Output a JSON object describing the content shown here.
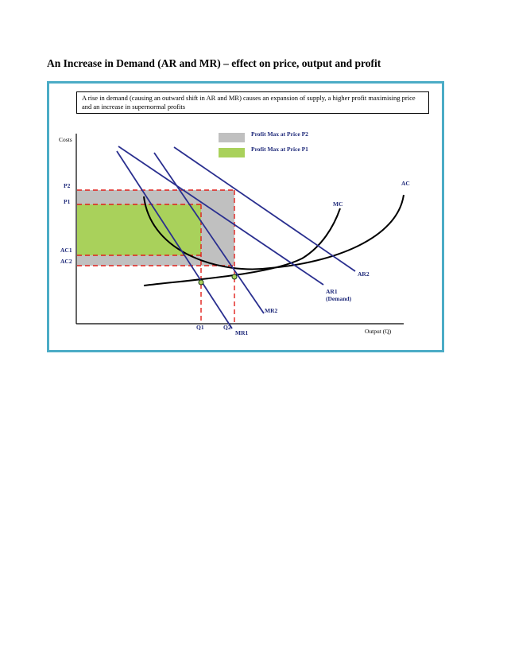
{
  "page": {
    "title": "An Increase in Demand (AR and MR) – effect on price, output and profit"
  },
  "diagram": {
    "caption": "A rise in demand (causing an outward shift in AR and MR) causes an expansion of supply, a higher profit maximising price and an increase in supernormal profits",
    "legend": [
      {
        "label": "Profit Max at Price P2",
        "color": "#c0c0c0"
      },
      {
        "label": "Profit Max at Price P1",
        "color": "#a9d15b"
      }
    ],
    "y_axis_label": "Costs",
    "x_axis_label": "Output (Q)",
    "y_ticks": {
      "p2": "P2",
      "p1": "P1",
      "ac1": "AC1",
      "ac2": "AC2"
    },
    "x_ticks": {
      "q1": "Q1",
      "q2": "Q2"
    },
    "curves": {
      "ac": "AC",
      "mc": "MC",
      "ar2": "AR2",
      "ar1": "AR1",
      "ar1_sub": "(Demand)",
      "mr2": "MR2",
      "mr1": "MR1"
    },
    "colors": {
      "frame": "#4bacc6",
      "curve_blue": "#2a2f8f",
      "dashed_red": "#e0201b",
      "profit_p2": "#c0c0c0",
      "profit_p1": "#a9d15b",
      "label_navy": "#1f2a7a"
    }
  }
}
